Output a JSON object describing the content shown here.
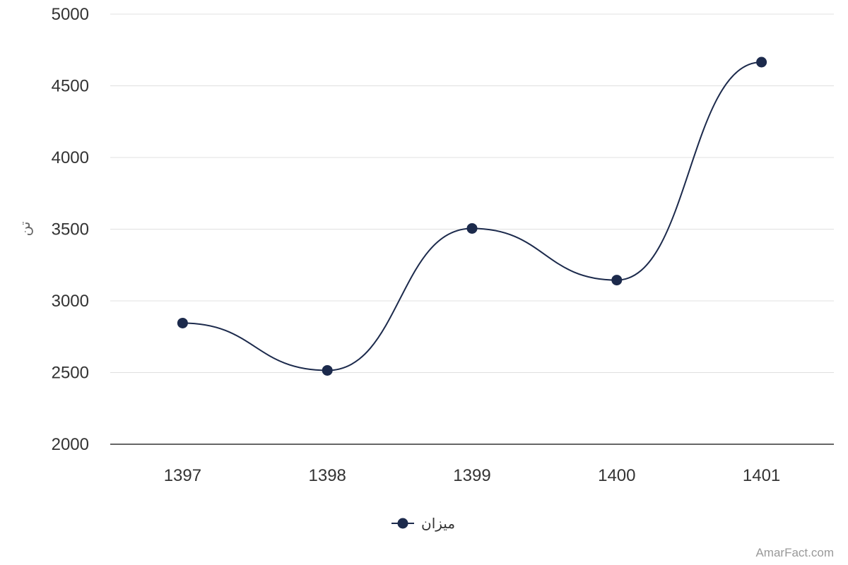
{
  "chart_data": {
    "type": "line",
    "categories": [
      "1397",
      "1398",
      "1399",
      "1400",
      "1401"
    ],
    "series": [
      {
        "name": "میزان",
        "values": [
          2845,
          2515,
          3505,
          3145,
          4665
        ]
      }
    ],
    "ylabel": "تن",
    "ylim": [
      2000,
      5000
    ],
    "yticks": [
      "2000",
      "2500",
      "3000",
      "3500",
      "4000",
      "4500",
      "5000"
    ],
    "grid": true,
    "legend_position": "bottom-center",
    "smooth": true
  },
  "colors": {
    "series": "#1c2a4c",
    "grid": "#e0e0e0",
    "axis": "#333333"
  },
  "credit": "AmarFact.com"
}
